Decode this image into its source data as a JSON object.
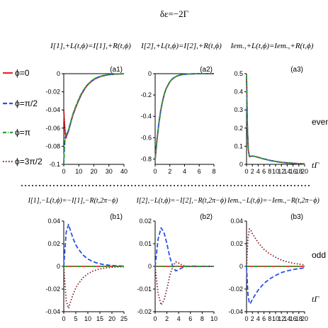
{
  "figure_title": "δε=−2Γ",
  "legend": [
    {
      "label": "ϕ=0",
      "color": "#e8242a",
      "dash": "solid"
    },
    {
      "label": "ϕ=π/2",
      "color": "#2b50e6",
      "dash": "dash"
    },
    {
      "label": "ϕ=π",
      "color": "#2ca02c",
      "dash": "dashdot"
    },
    {
      "label": "ϕ=3π/2",
      "color": "#7a1f2b",
      "dash": "dot"
    }
  ],
  "row_labels": {
    "even": "even",
    "odd": "odd",
    "xlabel_even": "tΓ",
    "xlabel_odd": "tΓ"
  },
  "column_headers": {
    "a1": "I[1],+L(t,ϕ)=I[1],+R(t,ϕ)",
    "a2": "I[2],+L(t,ϕ)=I[2],+R(t,ϕ)",
    "a3": "Iem.,+L(t,ϕ)=Iem.,+R(t,ϕ)",
    "b1": "I[1],−L(t,ϕ)=−I[1],−R(t,2π−ϕ)",
    "b2": "I[2],−L(t,ϕ)=−I[2],−R(t,2π−ϕ)",
    "b3": "Iem.,−L(t,ϕ)=−Iem.,−R(t,2π−ϕ)"
  },
  "chart_data": [
    {
      "id": "a1",
      "type": "line",
      "panel_label": "(a1)",
      "xlim": [
        0,
        40
      ],
      "ylim": [
        -0.1,
        0
      ],
      "xticks": [
        0,
        10,
        20,
        30,
        40
      ],
      "yticks": [
        -0.1,
        -0.08,
        -0.06,
        -0.04,
        -0.02,
        0
      ],
      "x": [
        0,
        0.5,
        1,
        1.5,
        2,
        2.5,
        3,
        4,
        5,
        6,
        8,
        10,
        12,
        15,
        18,
        21,
        25,
        30,
        35,
        40
      ],
      "series": [
        {
          "name": "ϕ=0",
          "values": [
            -0.04,
            -0.055,
            -0.067,
            -0.071,
            -0.068,
            -0.066,
            -0.064,
            -0.058,
            -0.052,
            -0.046,
            -0.037,
            -0.029,
            -0.022,
            -0.014,
            -0.009,
            -0.0055,
            -0.0028,
            -0.0011,
            -0.0004,
            -0.0001
          ]
        },
        {
          "name": "ϕ=π/2",
          "values": [
            -0.1,
            -0.08,
            -0.07,
            -0.067,
            -0.066,
            -0.065,
            -0.063,
            -0.057,
            -0.051,
            -0.045,
            -0.036,
            -0.028,
            -0.021,
            -0.0135,
            -0.0085,
            -0.005,
            -0.0025,
            -0.001,
            -0.0004,
            -0.0001
          ]
        },
        {
          "name": "ϕ=π",
          "values": [
            -0.1,
            -0.08,
            -0.07,
            -0.067,
            -0.066,
            -0.065,
            -0.063,
            -0.057,
            -0.051,
            -0.045,
            -0.036,
            -0.028,
            -0.021,
            -0.0135,
            -0.0085,
            -0.005,
            -0.0025,
            -0.001,
            -0.0004,
            -0.0001
          ]
        },
        {
          "name": "ϕ=3π/2",
          "values": [
            -0.04,
            -0.055,
            -0.067,
            -0.071,
            -0.068,
            -0.066,
            -0.064,
            -0.058,
            -0.052,
            -0.046,
            -0.037,
            -0.029,
            -0.022,
            -0.014,
            -0.009,
            -0.0055,
            -0.0028,
            -0.0011,
            -0.0004,
            -0.0001
          ]
        }
      ]
    },
    {
      "id": "a2",
      "type": "line",
      "panel_label": "(a2)",
      "xlim": [
        0,
        8
      ],
      "ylim": [
        -0.85,
        0
      ],
      "xticks": [
        0,
        2,
        4,
        6,
        8
      ],
      "yticks": [
        -0.8,
        -0.6,
        -0.4,
        -0.2,
        0
      ],
      "x": [
        0,
        0.25,
        0.5,
        0.75,
        1,
        1.25,
        1.5,
        2,
        2.5,
        3,
        3.5,
        4,
        5,
        6,
        7,
        8
      ],
      "series": [
        {
          "name": "ϕ=0",
          "values": [
            -0.8,
            -0.62,
            -0.47,
            -0.35,
            -0.26,
            -0.19,
            -0.14,
            -0.075,
            -0.04,
            -0.021,
            -0.011,
            -0.006,
            -0.0015,
            -0.0004,
            -0.0001,
            0
          ]
        },
        {
          "name": "ϕ=π/2",
          "values": [
            -0.8,
            -0.62,
            -0.47,
            -0.35,
            -0.26,
            -0.19,
            -0.14,
            -0.075,
            -0.04,
            -0.021,
            -0.011,
            -0.006,
            -0.0015,
            -0.0004,
            -0.0001,
            0
          ]
        },
        {
          "name": "ϕ=π",
          "values": [
            -0.8,
            -0.62,
            -0.47,
            -0.35,
            -0.26,
            -0.19,
            -0.14,
            -0.075,
            -0.04,
            -0.021,
            -0.011,
            -0.006,
            -0.0015,
            -0.0004,
            -0.0001,
            0
          ]
        },
        {
          "name": "ϕ=3π/2",
          "values": [
            -0.8,
            -0.62,
            -0.47,
            -0.35,
            -0.26,
            -0.19,
            -0.14,
            -0.075,
            -0.04,
            -0.021,
            -0.011,
            -0.006,
            -0.0015,
            -0.0004,
            -0.0001,
            0
          ]
        }
      ]
    },
    {
      "id": "a3",
      "type": "line",
      "panel_label": "(a3)",
      "xlim": [
        0,
        20
      ],
      "ylim": [
        0,
        0.5
      ],
      "xticks": [
        0,
        2,
        4,
        6,
        8,
        10,
        12,
        14,
        16,
        18,
        20
      ],
      "yticks": [
        0,
        0.1,
        0.2,
        0.3,
        0.4,
        0.5
      ],
      "x": [
        0,
        0.3,
        0.6,
        1,
        1.5,
        2,
        2.5,
        3,
        4,
        5,
        6,
        8,
        10,
        12,
        14,
        16,
        18,
        20
      ],
      "series": [
        {
          "name": "ϕ=0",
          "values": [
            0.49,
            0.2,
            0.08,
            0.042,
            0.045,
            0.046,
            0.045,
            0.043,
            0.039,
            0.034,
            0.03,
            0.022,
            0.016,
            0.011,
            0.008,
            0.006,
            0.004,
            0.003
          ]
        },
        {
          "name": "ϕ=π/2",
          "values": [
            0.49,
            0.2,
            0.08,
            0.042,
            0.045,
            0.046,
            0.045,
            0.043,
            0.039,
            0.034,
            0.03,
            0.022,
            0.016,
            0.011,
            0.008,
            0.006,
            0.004,
            0.003
          ]
        },
        {
          "name": "ϕ=π",
          "values": [
            0.49,
            0.2,
            0.08,
            0.042,
            0.045,
            0.046,
            0.045,
            0.043,
            0.039,
            0.034,
            0.03,
            0.022,
            0.016,
            0.011,
            0.008,
            0.006,
            0.004,
            0.003
          ]
        },
        {
          "name": "ϕ=3π/2",
          "values": [
            0.49,
            0.2,
            0.08,
            0.042,
            0.045,
            0.046,
            0.045,
            0.043,
            0.039,
            0.034,
            0.03,
            0.022,
            0.016,
            0.011,
            0.008,
            0.006,
            0.004,
            0.003
          ]
        }
      ]
    },
    {
      "id": "b1",
      "type": "line",
      "panel_label": "(b1)",
      "xlim": [
        0,
        25
      ],
      "ylim": [
        -0.04,
        0.04
      ],
      "xticks": [
        0,
        5,
        10,
        15,
        20,
        25
      ],
      "yticks": [
        -0.04,
        -0.02,
        0,
        0.02,
        0.04
      ],
      "x": [
        0,
        1,
        2,
        3,
        4,
        5,
        6,
        8,
        10,
        12,
        14,
        16,
        18,
        20,
        22,
        25
      ],
      "series": [
        {
          "name": "ϕ=0",
          "values": [
            0,
            0,
            0,
            0,
            0,
            0,
            0,
            0,
            0,
            0,
            0,
            0,
            0,
            0,
            0,
            0
          ]
        },
        {
          "name": "ϕ=π/2",
          "values": [
            0,
            0.03,
            0.037,
            0.03,
            0.024,
            0.019,
            0.0155,
            0.01,
            0.0065,
            0.0043,
            0.0028,
            0.0018,
            0.0012,
            0.0008,
            0.0005,
            0.0003
          ]
        },
        {
          "name": "ϕ=π",
          "values": [
            0,
            0,
            0,
            0,
            0,
            0,
            0,
            0,
            0,
            0,
            0,
            0,
            0,
            0,
            0,
            0
          ]
        },
        {
          "name": "ϕ=3π/2",
          "values": [
            0,
            -0.03,
            -0.037,
            -0.03,
            -0.024,
            -0.019,
            -0.0155,
            -0.01,
            -0.0065,
            -0.0043,
            -0.0028,
            -0.0018,
            -0.0012,
            -0.0008,
            -0.0005,
            -0.0003
          ]
        }
      ]
    },
    {
      "id": "b2",
      "type": "line",
      "panel_label": "(b2)",
      "xlim": [
        0,
        10
      ],
      "ylim": [
        -0.02,
        0.02
      ],
      "xticks": [
        0,
        2,
        4,
        6,
        8,
        10
      ],
      "yticks": [
        -0.02,
        -0.01,
        0,
        0.01,
        0.02
      ],
      "x": [
        0,
        0.5,
        1,
        1.5,
        2,
        2.5,
        3,
        3.5,
        4,
        4.5,
        5,
        6,
        7,
        8,
        9,
        10
      ],
      "series": [
        {
          "name": "ϕ=0",
          "values": [
            0,
            0,
            0,
            0,
            0,
            0,
            0,
            0,
            0,
            0,
            0,
            0,
            0,
            0,
            0,
            0
          ]
        },
        {
          "name": "ϕ=π/2",
          "values": [
            0,
            0.012,
            0.017,
            0.015,
            0.01,
            0.004,
            0,
            -0.002,
            -0.0015,
            -0.0007,
            -0.0002,
            0.0001,
            0.0001,
            0,
            0,
            0
          ]
        },
        {
          "name": "ϕ=π",
          "values": [
            0,
            0,
            0,
            0,
            0,
            0,
            0,
            0,
            0,
            0,
            0,
            0,
            0,
            0,
            0,
            0
          ]
        },
        {
          "name": "ϕ=3π/2",
          "values": [
            0,
            -0.012,
            -0.017,
            -0.015,
            -0.01,
            -0.004,
            0,
            0.002,
            0.0015,
            0.0007,
            0.0002,
            -0.0001,
            -0.0001,
            0,
            0,
            0
          ]
        }
      ]
    },
    {
      "id": "b3",
      "type": "line",
      "panel_label": "(b3)",
      "xlim": [
        0,
        20
      ],
      "ylim": [
        -0.04,
        0.04
      ],
      "xticks": [
        0,
        2,
        4,
        6,
        8,
        10,
        12,
        14,
        16,
        18,
        20
      ],
      "yticks": [
        -0.04,
        -0.02,
        0,
        0.02,
        0.04
      ],
      "x": [
        0,
        0.5,
        1,
        1.5,
        2,
        3,
        4,
        5,
        6,
        8,
        10,
        12,
        14,
        16,
        18,
        20
      ],
      "series": [
        {
          "name": "ϕ=0",
          "values": [
            0,
            0,
            0,
            0,
            0,
            0,
            0,
            0,
            0,
            0,
            0,
            0,
            0,
            0,
            0,
            0
          ]
        },
        {
          "name": "ϕ=π/2",
          "values": [
            0,
            -0.025,
            -0.033,
            -0.032,
            -0.029,
            -0.025,
            -0.021,
            -0.018,
            -0.015,
            -0.011,
            -0.008,
            -0.0055,
            -0.004,
            -0.0028,
            -0.002,
            -0.0013
          ]
        },
        {
          "name": "ϕ=π",
          "values": [
            0,
            0,
            0,
            0,
            0,
            0,
            0,
            0,
            0,
            0,
            0,
            0,
            0,
            0,
            0,
            0
          ]
        },
        {
          "name": "ϕ=3π/2",
          "values": [
            0,
            0.025,
            0.033,
            0.032,
            0.029,
            0.025,
            0.021,
            0.018,
            0.015,
            0.011,
            0.008,
            0.0055,
            0.004,
            0.0028,
            0.002,
            0.0013
          ]
        }
      ]
    }
  ]
}
